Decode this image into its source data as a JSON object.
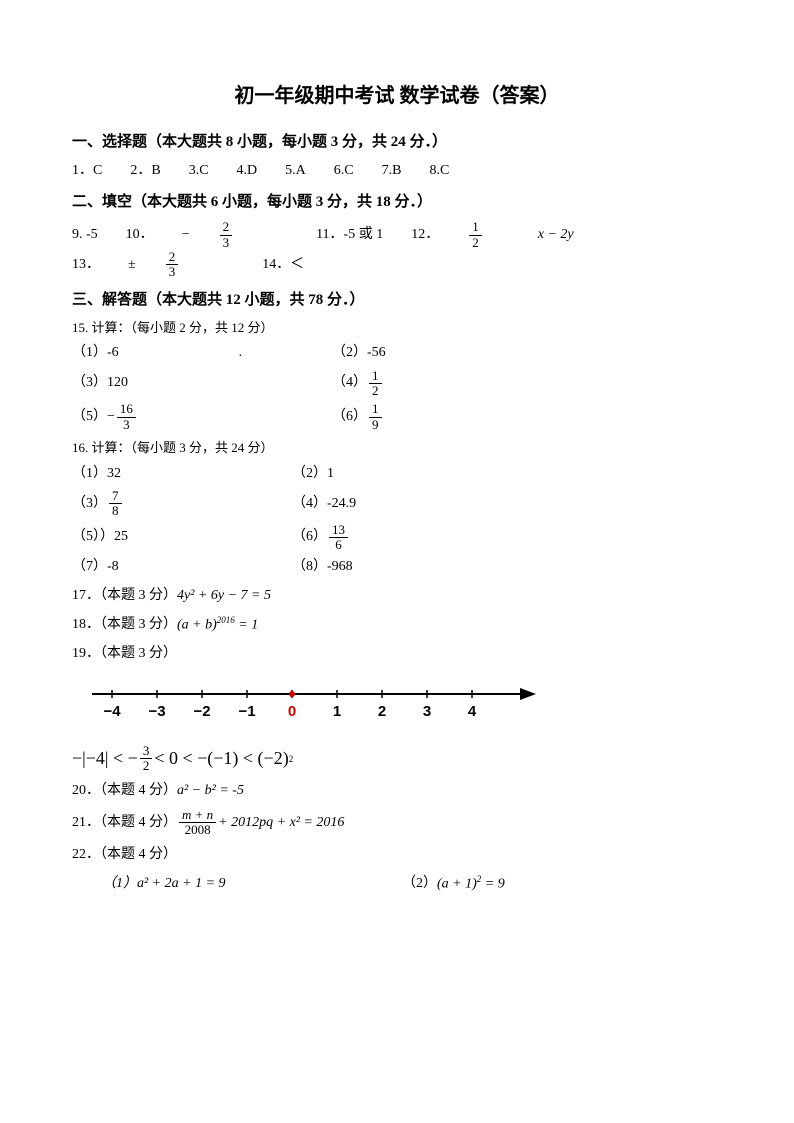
{
  "title": "初一年级期中考试 数学试卷（答案）",
  "section1": {
    "heading": "一、选择题（本大题共 8 小题，每小题 3 分，共 24 分．）",
    "answers": [
      "1．C",
      "2．B",
      "3.C",
      "4.D",
      "5.A",
      "6.C",
      "7.B",
      "8.C"
    ]
  },
  "section2": {
    "heading": "二、填空（本大题共 6 小题，每小题 3 分，共 18 分．）",
    "a9": "9. -5",
    "a10_prefix": "10．",
    "a10_sign": "−",
    "a10_num": "2",
    "a10_den": "3",
    "a11": "11．-5 或 1",
    "a12_prefix": "12．",
    "a12_num": "1",
    "a12_den": "2",
    "a12_rest": "x − 2y",
    "a13_prefix": "13．",
    "a13_sign": "±",
    "a13_num": "2",
    "a13_den": "3",
    "a14": "14．＜"
  },
  "section3": {
    "heading": "三、解答题（本大题共 12 小题，共 78 分．）",
    "q15_note": "15. 计算：（每小题 2 分，共 12 分）",
    "q15": {
      "a1": "（1）-6",
      "a2": "（2）-56",
      "a3": "（3）120",
      "a4_prefix": "（4）",
      "a4_num": "1",
      "a4_den": "2",
      "a5_prefix": "（5）",
      "a5_sign": "−",
      "a5_num": "16",
      "a5_den": "3",
      "a6_prefix": "（6）",
      "a6_num": "1",
      "a6_den": "9"
    },
    "q16_note": "16. 计算：（每小题 3 分，共 24 分）",
    "q16": {
      "a1": "（1）32",
      "a2": "（2）1",
      "a3_prefix": "（3）",
      "a3_num": "7",
      "a3_den": "8",
      "a4": "（4）-24.9",
      "a5": "（5））25",
      "a6_prefix": "（6）",
      "a6_num": "13",
      "a6_den": "6",
      "a7": "（7）-8",
      "a8": "（8）-968"
    },
    "q17_prefix": "17．（本题 3 分）",
    "q17_expr": "4y² + 6y − 7 = 5",
    "q18_prefix": "18．（本题 3 分）",
    "q18_expr_l": "(a + b)",
    "q18_exp": "2016",
    "q18_expr_r": " = 1",
    "q19": "19．（本题 3 分）",
    "numberline": {
      "ticks": [
        -4,
        -3,
        -2,
        -1,
        0,
        1,
        2,
        3,
        4
      ],
      "zero_label": "0",
      "zero_color": "#cc0000"
    },
    "q19_chain_l": "−|−4| < −",
    "q19_chain_num": "3",
    "q19_chain_den": "2",
    "q19_chain_m": " < 0 < −(−1) < (−2)",
    "q19_chain_exp": "2",
    "q20_prefix": "20．（本题 4 分）",
    "q20_expr": "a² − b² = -5",
    "q21_prefix": "21．（本题 4 分）",
    "q21_num": "m + n",
    "q21_den": "2008",
    "q21_rest": " + 2012pq + x² = 2016",
    "q22": "22．（本题 4 分）",
    "q22_a1": "（1）a² + 2a + 1 = 9",
    "q22_a2_prefix": "（2）",
    "q22_a2_l": "(a + 1)",
    "q22_a2_exp": "2",
    "q22_a2_r": " = 9"
  }
}
